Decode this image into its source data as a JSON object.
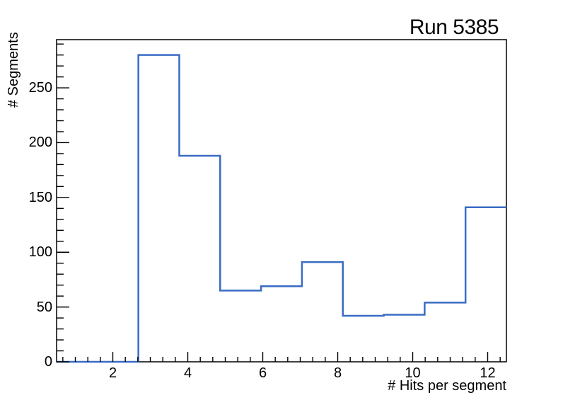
{
  "window": {
    "background": "#ffffff"
  },
  "chart_data": {
    "type": "bar",
    "style": "step-histogram",
    "title": "Run 5385",
    "xlabel": "# Hits per segment",
    "ylabel": "# Segments",
    "bin_edges": [
      0.5,
      1.5909,
      2.6818,
      3.7727,
      4.8636,
      5.9545,
      7.0455,
      8.1364,
      9.2273,
      10.3182,
      11.4091,
      12.5
    ],
    "values": [
      0,
      0,
      280,
      188,
      65,
      69,
      91,
      42,
      43,
      54,
      141
    ],
    "xlim": [
      0.5,
      12.5
    ],
    "ylim": [
      0,
      294
    ],
    "x_major_ticks": [
      2,
      4,
      6,
      8,
      10,
      12
    ],
    "x_minor_step": 0.33333333,
    "y_major_ticks": [
      0,
      50,
      100,
      150,
      200,
      250
    ],
    "y_minor_step": 10,
    "grid": false,
    "legend": null,
    "line_color": "#3a6cc4",
    "axis_color": "#000000"
  }
}
